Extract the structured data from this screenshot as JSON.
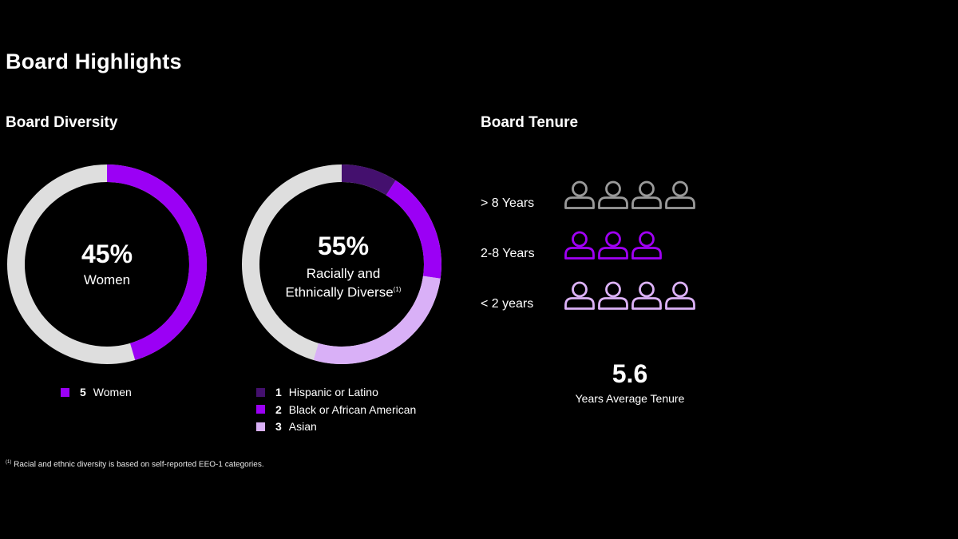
{
  "page": {
    "title": "Board Highlights"
  },
  "diversity": {
    "section_title": "Board Diversity",
    "women_donut": {
      "percent": "45%",
      "label": "Women"
    },
    "diverse_donut": {
      "percent": "55%",
      "label_line1": "Racially and",
      "label_line2": "Ethnically Diverse",
      "footnote_marker": "(1)"
    },
    "women_legend": [
      {
        "count": "5",
        "label": "Women",
        "color": "#9b00f5"
      }
    ],
    "diverse_legend": [
      {
        "count": "1",
        "label": "Hispanic or Latino",
        "color": "#44106e"
      },
      {
        "count": "2",
        "label": "Black or African American",
        "color": "#9b00f5"
      },
      {
        "count": "3",
        "label": "Asian",
        "color": "#d9b0f7"
      }
    ]
  },
  "tenure": {
    "section_title": "Board Tenure",
    "rows": [
      {
        "label": "> 8 Years",
        "count": 4,
        "color": "#9a9a9a"
      },
      {
        "label": "2-8 Years",
        "count": 3,
        "color": "#a000f5"
      },
      {
        "label": "< 2 years",
        "count": 4,
        "color": "#dcb2f8"
      }
    ],
    "average_value": "5.6",
    "average_label": "Years Average Tenure"
  },
  "footnote": {
    "marker": "(1)",
    "text": "Racial and ethnic diversity is based on self-reported EEO-1 categories."
  },
  "colors": {
    "background": "#000000",
    "ring_track": "#dedede",
    "purple": "#9b00f5",
    "dark_purple": "#44106e",
    "light_purple": "#d9b0f7"
  },
  "chart_data": [
    {
      "type": "pie",
      "variant": "donut",
      "title": "",
      "center_text": "45% Women",
      "total": 11,
      "series": [
        {
          "name": "Women",
          "value": 5,
          "color": "#9b00f5"
        }
      ],
      "remainder_color": "#dedede",
      "legend_position": "bottom"
    },
    {
      "type": "pie",
      "variant": "donut",
      "title": "",
      "center_text": "55% Racially and Ethnically Diverse",
      "total": 11,
      "series": [
        {
          "name": "Hispanic or Latino",
          "value": 1,
          "color": "#44106e"
        },
        {
          "name": "Black or African American",
          "value": 2,
          "color": "#9b00f5"
        },
        {
          "name": "Asian",
          "value": 3,
          "color": "#d9b0f7"
        }
      ],
      "remainder_color": "#dedede",
      "legend_position": "bottom"
    },
    {
      "type": "bar",
      "variant": "pictogram",
      "title": "",
      "categories": [
        "> 8 Years",
        "2-8 Years",
        "< 2 years"
      ],
      "values": [
        4,
        3,
        4
      ]
    }
  ]
}
